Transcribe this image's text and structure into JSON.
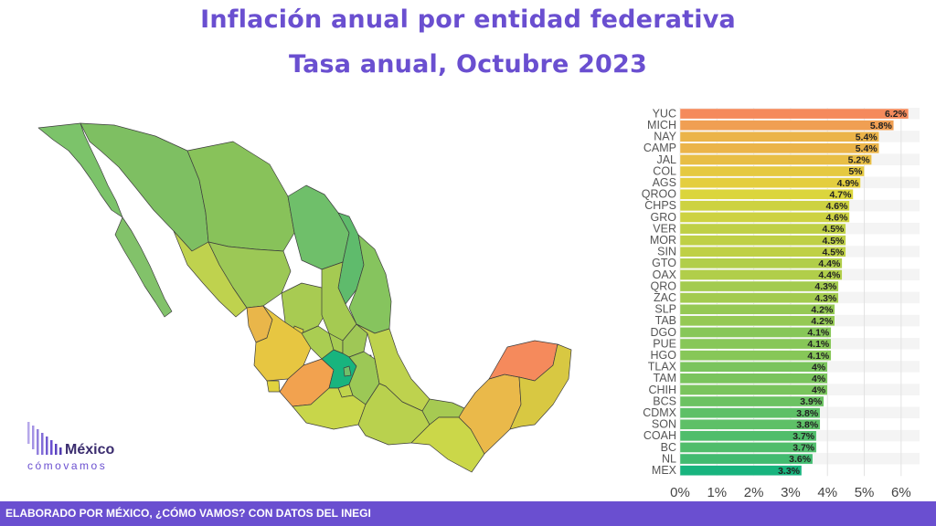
{
  "header": {
    "title": "Inflación anual por entidad federativa",
    "subtitle": "Tasa anual, Octubre 2023"
  },
  "logo": {
    "line1": "México",
    "line2": "cómovamos"
  },
  "footer": {
    "text": "ELABORADO POR MÉXICO, ¿CÓMO VAMOS? CON DATOS DEL INEGI"
  },
  "colors": {
    "accent": "#6a4fd0",
    "scale_high": "#f58a5c",
    "scale_mid": "#e2d63a",
    "scale_low": "#18b47e"
  },
  "chart_data": [
    {
      "type": "bar",
      "orientation": "horizontal",
      "categories": [
        "YUC",
        "MICH",
        "NAY",
        "CAMP",
        "JAL",
        "COL",
        "AGS",
        "QROO",
        "CHPS",
        "GRO",
        "VER",
        "MOR",
        "SIN",
        "GTO",
        "OAX",
        "QRO",
        "ZAC",
        "SLP",
        "TAB",
        "DGO",
        "PUE",
        "HGO",
        "TLAX",
        "TAM",
        "CHIH",
        "BCS",
        "CDMX",
        "SON",
        "COAH",
        "BC",
        "NL",
        "MEX"
      ],
      "values": [
        6.2,
        5.8,
        5.4,
        5.4,
        5.2,
        5.0,
        4.9,
        4.7,
        4.6,
        4.6,
        4.5,
        4.5,
        4.5,
        4.4,
        4.4,
        4.3,
        4.3,
        4.2,
        4.2,
        4.1,
        4.1,
        4.1,
        4.0,
        4.0,
        4.0,
        3.9,
        3.8,
        3.8,
        3.7,
        3.7,
        3.6,
        3.3
      ],
      "data_labels": [
        "6.2%",
        "5.8%",
        "5.4%",
        "5.4%",
        "5.2%",
        "5%",
        "4.9%",
        "4.7%",
        "4.6%",
        "4.6%",
        "4.5%",
        "4.5%",
        "4.5%",
        "4.4%",
        "4.4%",
        "4.3%",
        "4.3%",
        "4.2%",
        "4.2%",
        "4.1%",
        "4.1%",
        "4.1%",
        "4%",
        "4%",
        "4%",
        "3.9%",
        "3.8%",
        "3.8%",
        "3.7%",
        "3.7%",
        "3.6%",
        "3.3%"
      ],
      "xticks": [
        "0%",
        "1%",
        "2%",
        "3%",
        "4%",
        "5%",
        "6%"
      ],
      "xlim": [
        0,
        6.5
      ],
      "grid": true
    },
    {
      "type": "choropleth",
      "region": "México",
      "legend": "none"
    }
  ]
}
